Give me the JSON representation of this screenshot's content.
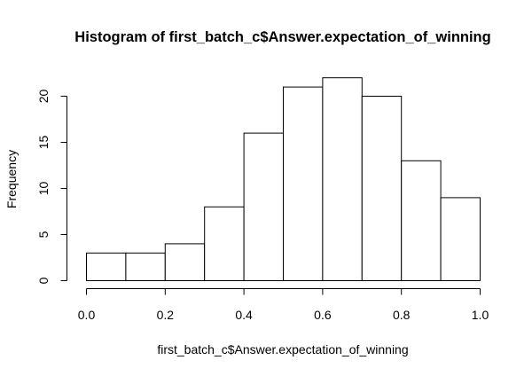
{
  "chart_data": {
    "type": "bar",
    "title": "Histogram of first_batch_c$Answer.expectation_of_winning",
    "xlabel": "first_batch_c$Answer.expectation_of_winning",
    "ylabel": "Frequency",
    "bins": [
      {
        "start": 0.0,
        "end": 0.1,
        "count": 3
      },
      {
        "start": 0.1,
        "end": 0.2,
        "count": 3
      },
      {
        "start": 0.2,
        "end": 0.3,
        "count": 4
      },
      {
        "start": 0.3,
        "end": 0.4,
        "count": 8
      },
      {
        "start": 0.4,
        "end": 0.5,
        "count": 16
      },
      {
        "start": 0.5,
        "end": 0.6,
        "count": 21
      },
      {
        "start": 0.6,
        "end": 0.7,
        "count": 22
      },
      {
        "start": 0.7,
        "end": 0.8,
        "count": 20
      },
      {
        "start": 0.8,
        "end": 0.9,
        "count": 13
      },
      {
        "start": 0.9,
        "end": 1.0,
        "count": 9
      }
    ],
    "xlim": [
      0.0,
      1.0
    ],
    "ylim": [
      0,
      22
    ],
    "x_ticks": [
      0.0,
      0.2,
      0.4,
      0.6,
      0.8,
      1.0
    ],
    "x_tick_labels": [
      "0.0",
      "0.2",
      "0.4",
      "0.6",
      "0.8",
      "1.0"
    ],
    "y_ticks": [
      0,
      5,
      10,
      15,
      20
    ],
    "y_tick_labels": [
      "0",
      "5",
      "10",
      "15",
      "20"
    ],
    "bar_fill": "#ffffff",
    "bar_stroke": "#000000",
    "grid": false,
    "legend": "none"
  }
}
